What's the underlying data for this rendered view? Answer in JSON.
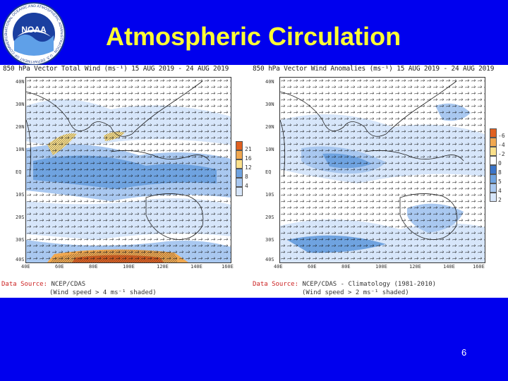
{
  "slide": {
    "title": "Atmospheric Circulation",
    "number": "6",
    "logo_text": "NOAA",
    "logo_ring_text": "NATIONAL OCEANIC AND ATMOSPHERIC ADMINISTRATION · U.S. DEPARTMENT OF COMMERCE"
  },
  "left_map": {
    "title": "850 hPa Vector Total Wind (ms⁻¹) 15 AUG 2019 - 24 AUG 2019",
    "lat_labels": [
      "40N",
      "30N",
      "20N",
      "10N",
      "EQ",
      "10S",
      "20S",
      "30S",
      "40S"
    ],
    "lon_labels": [
      "40E",
      "60E",
      "80E",
      "100E",
      "120E",
      "140E",
      "160E"
    ],
    "colorbar_labels": [
      "21",
      "16",
      "12",
      "8",
      "4"
    ],
    "colorbar_colors": [
      "#e06020",
      "#f0a850",
      "#fbe08a",
      "#6fa3e0",
      "#a9c8f0",
      "#d7e6fa"
    ],
    "source_label": "Data Source:",
    "source_value": "NCEP/CDAS",
    "shade_note": "(Wind speed > 4 ms⁻¹ shaded)"
  },
  "right_map": {
    "title": "850 hPa Vector Wind Anomalies (ms⁻¹) 15 AUG 2019 - 24 AUG 2019",
    "lat_labels": [
      "40N",
      "30N",
      "20N",
      "10N",
      "EQ",
      "10S",
      "20S",
      "30S",
      "40S"
    ],
    "lon_labels": [
      "40E",
      "60E",
      "80E",
      "100E",
      "120E",
      "140E",
      "160E"
    ],
    "colorbar_labels": [
      "-6",
      "-4",
      "-2",
      "0",
      "8",
      "5",
      "4",
      "2"
    ],
    "colorbar_colors": [
      "#e06020",
      "#f0a850",
      "#fbe08a",
      "#ffffff",
      "#3a74c8",
      "#6fa3e0",
      "#a9c8f0",
      "#d7e6fa"
    ],
    "source_label": "Data Source:",
    "source_value": "NCEP/CDAS - Climatology (1981-2010)",
    "shade_note": "(Wind speed > 2 ms⁻¹ shaded)"
  },
  "colors": {
    "background": "#0000ee",
    "title": "#ffff33",
    "land_outline": "#222222",
    "wind_shade_light": "#d7e6fa",
    "wind_shade_mid": "#a9c8f0",
    "wind_shade_strong": "#6fa3e0"
  }
}
